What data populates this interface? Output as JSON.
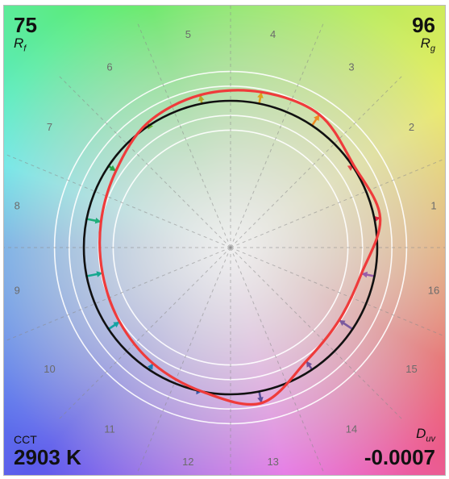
{
  "chart_data": {
    "type": "color_vector_graphic",
    "metrics": {
      "rf_value": "75",
      "rf_label": "R",
      "rf_label_sub": "f",
      "rg_value": "96",
      "rg_label": "R",
      "rg_label_sub": "g",
      "cct_label": "CCT",
      "cct_value": "2903 K",
      "duv_label": "D",
      "duv_label_sub": "uv",
      "duv_value": "-0.0007"
    },
    "hue_bins": [
      "1",
      "2",
      "3",
      "4",
      "5",
      "6",
      "7",
      "8",
      "9",
      "10",
      "11",
      "12",
      "13",
      "14",
      "15",
      "16"
    ],
    "reference_radius": 1.0,
    "guide_circle_radii": [
      0.8,
      0.9,
      1.1,
      1.2
    ],
    "test_radius_by_bin": [
      1.04,
      1.01,
      1.09,
      1.08,
      1.06,
      1.02,
      0.94,
      0.9,
      0.89,
      0.91,
      0.95,
      1.0,
      1.08,
      0.93,
      0.89,
      0.91
    ],
    "vector_colors": [
      "#e0233f",
      "#e54a4a",
      "#ee8a22",
      "#e0a21c",
      "#b5a829",
      "#6cb335",
      "#2aa64a",
      "#1fae7a",
      "#16a88f",
      "#14a2a3",
      "#1a7fb2",
      "#3a59a8",
      "#5a4f9c",
      "#6f4f98",
      "#7b5a9e",
      "#9a5ea8"
    ],
    "series": [
      {
        "name": "",
        "color": "#ef3b3b"
      },
      {
        "name": "",
        "color": "#111111"
      }
    ]
  }
}
